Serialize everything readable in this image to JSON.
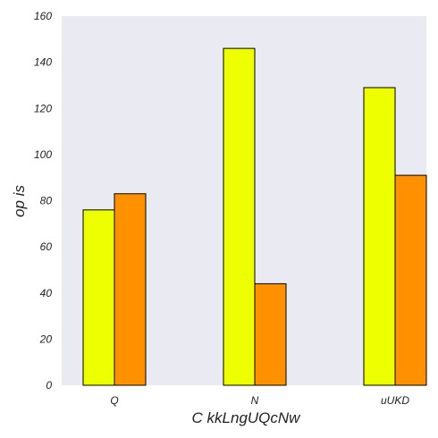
{
  "chart_data": {
    "type": "bar",
    "title": "",
    "xlabel": "C kkLngUQcNw",
    "ylabel": "op is",
    "categories": [
      "Q",
      "N",
      "uUKD"
    ],
    "series": [
      {
        "values": [
          76,
          146,
          129
        ],
        "color": "#eeff00"
      },
      {
        "values": [
          83,
          44,
          91
        ],
        "color": "#ff9100"
      }
    ],
    "ylim": [
      0,
      160
    ],
    "yticks": [
      0,
      20,
      40,
      60,
      80,
      100,
      120,
      140,
      160
    ],
    "grid": false,
    "background": "#eaeaf2",
    "bar_edge_color": "#000000"
  }
}
